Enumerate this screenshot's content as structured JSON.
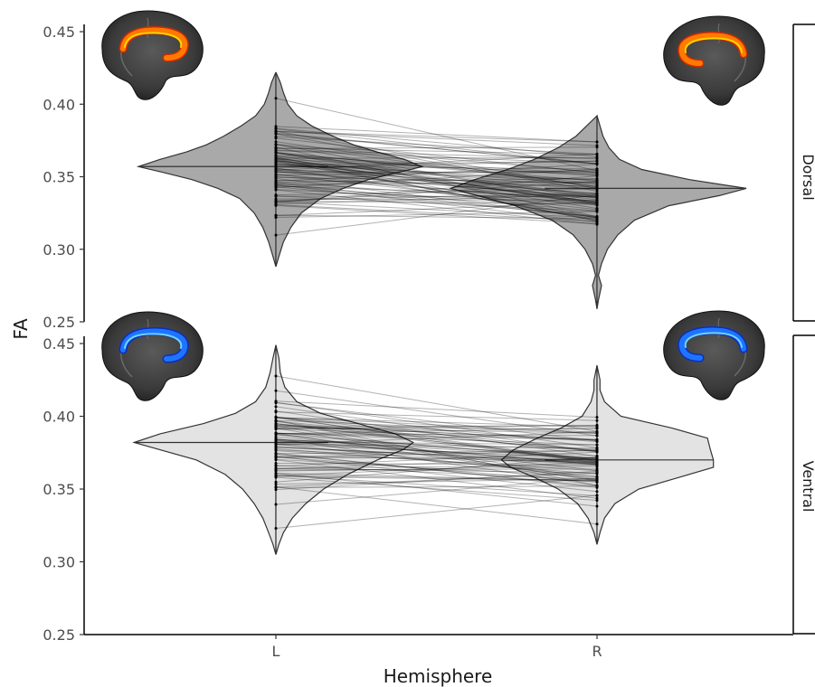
{
  "chart_data": {
    "type": "split-violin",
    "xlabel": "Hemisphere",
    "ylabel": "FA",
    "categories": [
      "L",
      "R"
    ],
    "ylim": [
      0.25,
      0.455
    ],
    "yticks": [
      0.25,
      0.3,
      0.35,
      0.4,
      0.45
    ],
    "ytick_labels": [
      "0.25",
      "0.30",
      "0.35",
      "0.40",
      "0.45"
    ],
    "grid": false,
    "panels": [
      {
        "name": "Dorsal",
        "fill_color": "#a9a9a9",
        "brain_overlay": "orange",
        "L": {
          "range": [
            0.288,
            0.422
          ],
          "median": 0.357,
          "density": [
            [
              0.288,
              0.0
            ],
            [
              0.295,
              0.02
            ],
            [
              0.305,
              0.05
            ],
            [
              0.315,
              0.09
            ],
            [
              0.325,
              0.15
            ],
            [
              0.335,
              0.25
            ],
            [
              0.342,
              0.4
            ],
            [
              0.348,
              0.58
            ],
            [
              0.353,
              0.78
            ],
            [
              0.357,
              0.95
            ],
            [
              0.362,
              0.8
            ],
            [
              0.367,
              0.62
            ],
            [
              0.372,
              0.48
            ],
            [
              0.378,
              0.36
            ],
            [
              0.385,
              0.24
            ],
            [
              0.392,
              0.14
            ],
            [
              0.4,
              0.08
            ],
            [
              0.408,
              0.05
            ],
            [
              0.415,
              0.03
            ],
            [
              0.422,
              0.0
            ]
          ],
          "density_right": [
            [
              0.288,
              0.0
            ],
            [
              0.295,
              0.02
            ],
            [
              0.305,
              0.05
            ],
            [
              0.315,
              0.1
            ],
            [
              0.325,
              0.17
            ],
            [
              0.335,
              0.3
            ],
            [
              0.342,
              0.45
            ],
            [
              0.348,
              0.62
            ],
            [
              0.353,
              0.82
            ],
            [
              0.357,
              0.98
            ],
            [
              0.362,
              0.86
            ],
            [
              0.367,
              0.68
            ],
            [
              0.372,
              0.52
            ],
            [
              0.378,
              0.38
            ],
            [
              0.385,
              0.24
            ],
            [
              0.392,
              0.14
            ],
            [
              0.4,
              0.08
            ],
            [
              0.408,
              0.05
            ],
            [
              0.415,
              0.03
            ],
            [
              0.422,
              0.0
            ]
          ]
        },
        "R": {
          "range": [
            0.259,
            0.392
          ],
          "median": 0.342,
          "density": [
            [
              0.259,
              0.0
            ],
            [
              0.265,
              0.01
            ],
            [
              0.27,
              0.02
            ],
            [
              0.275,
              0.03
            ],
            [
              0.282,
              0.01
            ],
            [
              0.29,
              0.03
            ],
            [
              0.3,
              0.08
            ],
            [
              0.31,
              0.16
            ],
            [
              0.32,
              0.3
            ],
            [
              0.33,
              0.55
            ],
            [
              0.337,
              0.8
            ],
            [
              0.342,
              0.98
            ],
            [
              0.348,
              0.82
            ],
            [
              0.355,
              0.6
            ],
            [
              0.362,
              0.42
            ],
            [
              0.37,
              0.26
            ],
            [
              0.378,
              0.14
            ],
            [
              0.385,
              0.07
            ],
            [
              0.392,
              0.0
            ]
          ],
          "density_right": [
            [
              0.259,
              0.0
            ],
            [
              0.265,
              0.01
            ],
            [
              0.27,
              0.02
            ],
            [
              0.275,
              0.03
            ],
            [
              0.282,
              0.01
            ],
            [
              0.29,
              0.03
            ],
            [
              0.3,
              0.07
            ],
            [
              0.31,
              0.14
            ],
            [
              0.32,
              0.25
            ],
            [
              0.33,
              0.48
            ],
            [
              0.337,
              0.82
            ],
            [
              0.342,
              1.0
            ],
            [
              0.348,
              0.62
            ],
            [
              0.355,
              0.3
            ],
            [
              0.362,
              0.15
            ],
            [
              0.37,
              0.08
            ],
            [
              0.378,
              0.04
            ],
            [
              0.385,
              0.02
            ],
            [
              0.392,
              0.0
            ]
          ]
        }
      },
      {
        "name": "Ventral",
        "fill_color": "#e3e3e3",
        "brain_overlay": "blue",
        "L": {
          "range": [
            0.305,
            0.449
          ],
          "median": 0.382,
          "density": [
            [
              0.305,
              0.0
            ],
            [
              0.312,
              0.02
            ],
            [
              0.32,
              0.05
            ],
            [
              0.33,
              0.09
            ],
            [
              0.34,
              0.15
            ],
            [
              0.35,
              0.23
            ],
            [
              0.36,
              0.35
            ],
            [
              0.37,
              0.55
            ],
            [
              0.377,
              0.8
            ],
            [
              0.382,
              0.98
            ],
            [
              0.388,
              0.8
            ],
            [
              0.395,
              0.5
            ],
            [
              0.402,
              0.28
            ],
            [
              0.41,
              0.14
            ],
            [
              0.42,
              0.07
            ],
            [
              0.43,
              0.04
            ],
            [
              0.44,
              0.02
            ],
            [
              0.449,
              0.0
            ]
          ],
          "density_right": [
            [
              0.305,
              0.0
            ],
            [
              0.312,
              0.02
            ],
            [
              0.32,
              0.05
            ],
            [
              0.33,
              0.11
            ],
            [
              0.34,
              0.2
            ],
            [
              0.35,
              0.32
            ],
            [
              0.36,
              0.48
            ],
            [
              0.37,
              0.68
            ],
            [
              0.377,
              0.85
            ],
            [
              0.382,
              0.92
            ],
            [
              0.388,
              0.8
            ],
            [
              0.395,
              0.55
            ],
            [
              0.402,
              0.3
            ],
            [
              0.41,
              0.14
            ],
            [
              0.42,
              0.06
            ],
            [
              0.43,
              0.03
            ],
            [
              0.44,
              0.02
            ],
            [
              0.449,
              0.0
            ]
          ]
        },
        "R": {
          "range": [
            0.312,
            0.435
          ],
          "median": 0.37,
          "density": [
            [
              0.312,
              0.0
            ],
            [
              0.32,
              0.02
            ],
            [
              0.33,
              0.06
            ],
            [
              0.34,
              0.13
            ],
            [
              0.35,
              0.26
            ],
            [
              0.358,
              0.42
            ],
            [
              0.365,
              0.58
            ],
            [
              0.37,
              0.64
            ],
            [
              0.377,
              0.56
            ],
            [
              0.385,
              0.4
            ],
            [
              0.392,
              0.24
            ],
            [
              0.4,
              0.1
            ],
            [
              0.41,
              0.04
            ],
            [
              0.418,
              0.02
            ],
            [
              0.425,
              0.02
            ],
            [
              0.435,
              0.0
            ]
          ],
          "density_right": [
            [
              0.312,
              0.0
            ],
            [
              0.32,
              0.02
            ],
            [
              0.33,
              0.05
            ],
            [
              0.34,
              0.12
            ],
            [
              0.35,
              0.28
            ],
            [
              0.358,
              0.55
            ],
            [
              0.365,
              0.78
            ],
            [
              0.37,
              0.78
            ],
            [
              0.377,
              0.76
            ],
            [
              0.385,
              0.74
            ],
            [
              0.392,
              0.5
            ],
            [
              0.4,
              0.16
            ],
            [
              0.41,
              0.05
            ],
            [
              0.418,
              0.02
            ],
            [
              0.425,
              0.02
            ],
            [
              0.435,
              0.0
            ]
          ]
        }
      }
    ]
  }
}
